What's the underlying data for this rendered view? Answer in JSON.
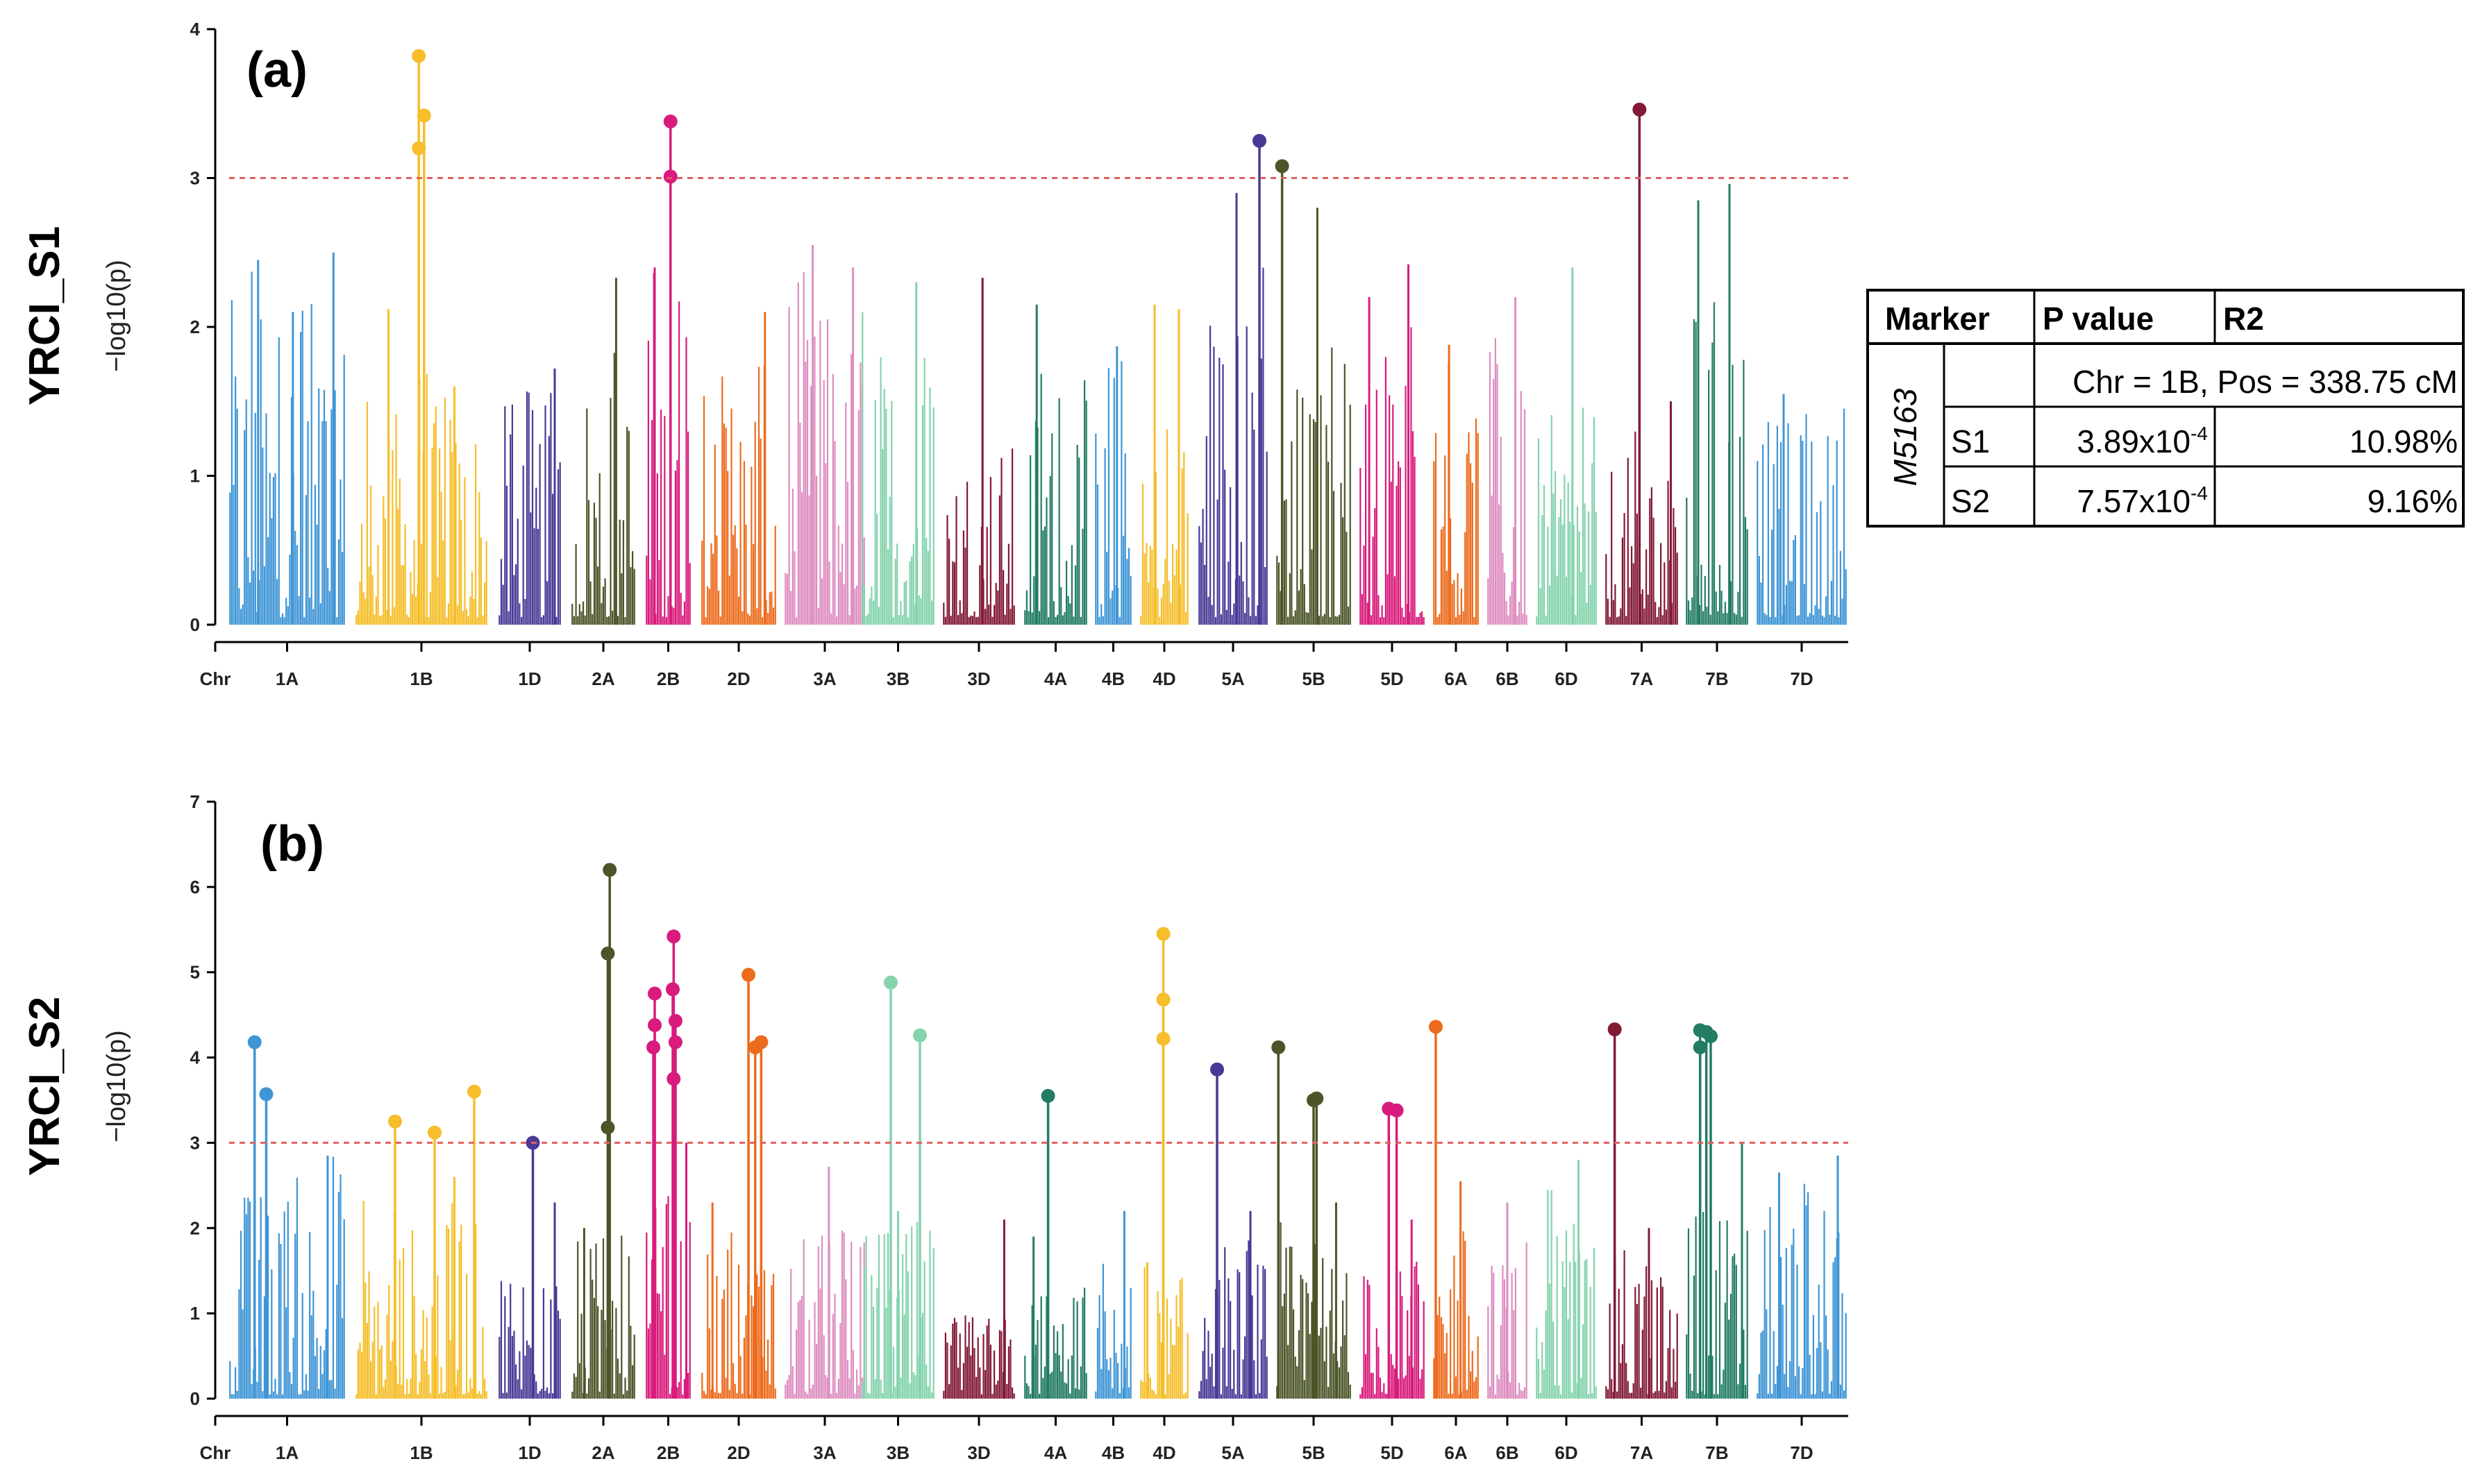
{
  "chart_data": [
    {
      "type": "manhattan",
      "panel_label": "(a)",
      "row_label": "YRCI_S1",
      "ylabel": "−log10(p)",
      "xlabel": "Chr",
      "ylim": [
        0,
        4
      ],
      "yticks": [
        "0",
        "1",
        "2",
        "3",
        "4"
      ],
      "threshold": 3,
      "chromosomes": [
        {
          "name": "1A",
          "color": "#3f95d6",
          "max": 2.5,
          "peaks": [
            [
              0.25,
              2.45
            ],
            [
              0.55,
              2.1
            ],
            [
              0.9,
              2.5
            ]
          ],
          "hits": []
        },
        {
          "name": "1B",
          "color": "#f5be2a",
          "max": 1.7,
          "peaks": [
            [
              0.25,
              2.12
            ],
            [
              0.75,
              1.6
            ]
          ],
          "hits": [
            [
              0.48,
              3.82
            ],
            [
              0.48,
              3.2
            ],
            [
              0.52,
              3.42
            ]
          ]
        },
        {
          "name": "1D",
          "color": "#4a3896",
          "max": 1.7,
          "peaks": [
            [
              0.9,
              1.72
            ]
          ],
          "hits": []
        },
        {
          "name": "2A",
          "color": "#4b5529",
          "max": 2.0,
          "peaks": [
            [
              0.7,
              2.33
            ]
          ],
          "hits": []
        },
        {
          "name": "2B",
          "color": "#d81b7c",
          "max": 2.4,
          "peaks": [
            [
              0.2,
              2.4
            ]
          ],
          "hits": [
            [
              0.55,
              3.38
            ],
            [
              0.55,
              3.01
            ]
          ]
        },
        {
          "name": "2D",
          "color": "#ec6b1c",
          "max": 2.0,
          "peaks": [
            [
              0.85,
              2.1
            ]
          ],
          "hits": []
        },
        {
          "name": "3A",
          "color": "#de8ec0",
          "max": 2.4,
          "peaks": [
            [
              0.35,
              2.55
            ],
            [
              0.85,
              2.4
            ]
          ],
          "hits": []
        },
        {
          "name": "3B",
          "color": "#84d3ad",
          "max": 2.2,
          "peaks": [
            [
              0.75,
              2.3
            ]
          ],
          "hits": []
        },
        {
          "name": "3D",
          "color": "#821a36",
          "max": 1.4,
          "peaks": [
            [
              0.55,
              2.33
            ]
          ],
          "hits": []
        },
        {
          "name": "4A",
          "color": "#237c64",
          "max": 1.8,
          "peaks": [
            [
              0.2,
              2.15
            ]
          ],
          "hits": []
        },
        {
          "name": "4B",
          "color": "#3f95d6",
          "max": 1.8,
          "peaks": [
            [
              0.6,
              1.87
            ]
          ],
          "hits": []
        },
        {
          "name": "4D",
          "color": "#f5be2a",
          "max": 1.4,
          "peaks": [
            [
              0.3,
              2.15
            ],
            [
              0.8,
              2.12
            ]
          ],
          "hits": []
        },
        {
          "name": "5A",
          "color": "#4a3896",
          "max": 2.5,
          "peaks": [
            [
              0.55,
              2.9
            ]
          ],
          "hits": [
            [
              0.88,
              3.25
            ]
          ]
        },
        {
          "name": "5B",
          "color": "#4b5529",
          "max": 1.9,
          "peaks": [
            [
              0.55,
              2.8
            ]
          ],
          "hits": [
            [
              0.08,
              3.08
            ]
          ]
        },
        {
          "name": "5D",
          "color": "#d81b7c",
          "max": 2.2,
          "peaks": [
            [
              0.15,
              2.2
            ],
            [
              0.75,
              2.42
            ]
          ],
          "hits": []
        },
        {
          "name": "6A",
          "color": "#ec6b1c",
          "max": 1.85,
          "peaks": [
            [
              0.35,
              1.88
            ]
          ],
          "hits": []
        },
        {
          "name": "6B",
          "color": "#de8ec0",
          "max": 1.95,
          "peaks": [
            [
              0.7,
              2.2
            ]
          ],
          "hits": []
        },
        {
          "name": "6D",
          "color": "#84d3ad",
          "max": 1.6,
          "peaks": [
            [
              0.6,
              2.4
            ]
          ],
          "hits": []
        },
        {
          "name": "7A",
          "color": "#821a36",
          "max": 1.3,
          "peaks": [
            [
              0.9,
              1.5
            ]
          ],
          "hits": [
            [
              0.47,
              3.46
            ]
          ]
        },
        {
          "name": "7B",
          "color": "#237c64",
          "max": 2.6,
          "peaks": [
            [
              0.2,
              2.85
            ],
            [
              0.7,
              2.96
            ]
          ],
          "hits": []
        },
        {
          "name": "7D",
          "color": "#3f95d6",
          "max": 1.55,
          "peaks": [
            [
              0.3,
              1.55
            ]
          ],
          "hits": []
        }
      ]
    },
    {
      "type": "manhattan",
      "panel_label": "(b)",
      "row_label": "YRCI_S2",
      "ylabel": "−log10(p)",
      "xlabel": "Chr",
      "ylim": [
        0,
        7
      ],
      "yticks": [
        "0",
        "1",
        "2",
        "3",
        "4",
        "5",
        "6",
        "7"
      ],
      "threshold": 3,
      "chromosomes": [
        {
          "name": "1A",
          "color": "#3f95d6",
          "max": 2.9,
          "peaks": [
            [
              0.85,
              2.85
            ]
          ],
          "hits": [
            [
              0.22,
              4.18
            ],
            [
              0.32,
              3.57
            ]
          ]
        },
        {
          "name": "1B",
          "color": "#f5be2a",
          "max": 2.4,
          "peaks": [
            [
              0.75,
              2.6
            ]
          ],
          "hits": [
            [
              0.3,
              3.25
            ],
            [
              0.6,
              3.12
            ],
            [
              0.9,
              3.6
            ]
          ]
        },
        {
          "name": "1D",
          "color": "#4a3896",
          "max": 2.0,
          "peaks": [
            [
              0.9,
              2.3
            ]
          ],
          "hits": [
            [
              0.55,
              3.0
            ]
          ]
        },
        {
          "name": "2A",
          "color": "#4b5529",
          "max": 2.2,
          "peaks": [
            [
              0.2,
              2.0
            ]
          ],
          "hits": [
            [
              0.6,
              6.2
            ],
            [
              0.57,
              5.22
            ],
            [
              0.57,
              3.18
            ]
          ]
        },
        {
          "name": "2B",
          "color": "#d81b7c",
          "max": 2.6,
          "peaks": [
            [
              0.9,
              3.0
            ]
          ],
          "hits": [
            [
              0.2,
              4.75
            ],
            [
              0.2,
              4.38
            ],
            [
              0.17,
              4.12
            ],
            [
              0.62,
              5.42
            ],
            [
              0.6,
              4.8
            ],
            [
              0.66,
              4.43
            ],
            [
              0.66,
              4.18
            ],
            [
              0.62,
              3.75
            ]
          ]
        },
        {
          "name": "2D",
          "color": "#ec6b1c",
          "max": 2.0,
          "peaks": [
            [
              0.15,
              2.3
            ]
          ],
          "hits": [
            [
              0.63,
              4.97
            ],
            [
              0.72,
              4.12
            ],
            [
              0.8,
              4.18
            ]
          ]
        },
        {
          "name": "3A",
          "color": "#de8ec0",
          "max": 2.2,
          "peaks": [
            [
              0.55,
              2.72
            ]
          ],
          "hits": []
        },
        {
          "name": "3B",
          "color": "#84d3ad",
          "max": 2.4,
          "peaks": [
            [
              0.5,
              2.2
            ]
          ],
          "hits": [
            [
              0.4,
              4.88
            ],
            [
              0.8,
              4.26
            ]
          ]
        },
        {
          "name": "3D",
          "color": "#821a36",
          "max": 1.1,
          "peaks": [
            [
              0.85,
              2.1
            ]
          ],
          "hits": []
        },
        {
          "name": "4A",
          "color": "#237c64",
          "max": 1.4,
          "peaks": [
            [
              0.15,
              1.9
            ]
          ],
          "hits": [
            [
              0.38,
              3.55
            ]
          ]
        },
        {
          "name": "4B",
          "color": "#3f95d6",
          "max": 1.6,
          "peaks": [
            [
              0.8,
              2.2
            ]
          ],
          "hits": []
        },
        {
          "name": "4D",
          "color": "#f5be2a",
          "max": 1.6,
          "peaks": [
            [
              0.15,
              1.6
            ]
          ],
          "hits": [
            [
              0.48,
              5.45
            ],
            [
              0.48,
              4.68
            ],
            [
              0.48,
              4.22
            ]
          ]
        },
        {
          "name": "5A",
          "color": "#4a3896",
          "max": 1.9,
          "peaks": [
            [
              0.75,
              2.2
            ]
          ],
          "hits": [
            [
              0.27,
              3.86
            ]
          ]
        },
        {
          "name": "5B",
          "color": "#4b5529",
          "max": 2.2,
          "peaks": [
            [
              0.8,
              2.3
            ]
          ],
          "hits": [
            [
              0.03,
              4.12
            ],
            [
              0.5,
              3.5
            ],
            [
              0.54,
              3.52
            ]
          ]
        },
        {
          "name": "5D",
          "color": "#d81b7c",
          "max": 1.8,
          "peaks": [
            [
              0.8,
              2.1
            ]
          ],
          "hits": [
            [
              0.45,
              3.4
            ],
            [
              0.57,
              3.38
            ]
          ]
        },
        {
          "name": "6A",
          "color": "#ec6b1c",
          "max": 2.5,
          "peaks": [
            [
              0.6,
              2.55
            ]
          ],
          "hits": [
            [
              0.06,
              4.36
            ]
          ]
        },
        {
          "name": "6B",
          "color": "#de8ec0",
          "max": 1.9,
          "peaks": [
            [
              0.5,
              2.3
            ]
          ],
          "hits": []
        },
        {
          "name": "6D",
          "color": "#84d3ad",
          "max": 2.6,
          "peaks": [
            [
              0.7,
              2.8
            ]
          ],
          "hits": []
        },
        {
          "name": "7A",
          "color": "#821a36",
          "max": 1.9,
          "peaks": [
            [
              0.6,
              2.0
            ]
          ],
          "hits": [
            [
              0.13,
              4.33
            ]
          ]
        },
        {
          "name": "7B",
          "color": "#237c64",
          "max": 2.6,
          "peaks": [
            [
              0.9,
              3.0
            ]
          ],
          "hits": [
            [
              0.23,
              4.12
            ],
            [
              0.23,
              4.32
            ],
            [
              0.33,
              4.3
            ],
            [
              0.4,
              4.25
            ]
          ]
        },
        {
          "name": "7D",
          "color": "#3f95d6",
          "max": 2.6,
          "peaks": [
            [
              0.25,
              2.65
            ],
            [
              0.9,
              2.85
            ]
          ],
          "hits": []
        }
      ]
    }
  ],
  "table": {
    "headers": [
      "Marker",
      "P value",
      "R2"
    ],
    "marker": "M5163",
    "position": "Chr = 1B, Pos = 338.75 cM",
    "rows": [
      {
        "set": "S1",
        "p_base": "3.89x10",
        "p_exp": "-4",
        "r2": "10.98%"
      },
      {
        "set": "S2",
        "p_base": "7.57x10",
        "p_exp": "-4",
        "r2": "9.16%"
      }
    ]
  }
}
